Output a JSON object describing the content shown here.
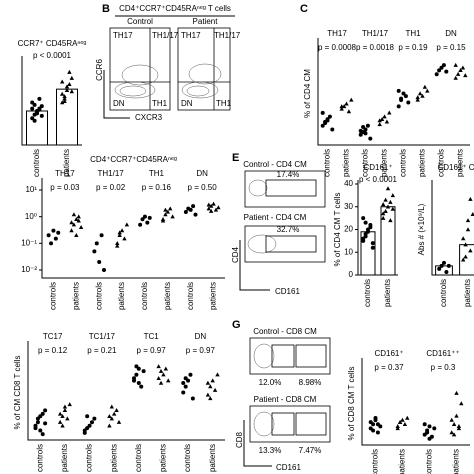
{
  "figure": {
    "letters": [
      "B",
      "C",
      "E",
      "G"
    ],
    "b_title": "CD4⁺CCR7⁺CD45RAⁿᵉᵍ T cells",
    "b_control": "Control",
    "b_patient": "Patient",
    "b_q1": "TH17",
    "b_q2": "TH1/17",
    "b_q3": "DN",
    "b_q4": "TH1",
    "b_ylabel": "CCR6",
    "b_xlabel": "CXCR3",
    "e_control": "Control - CD4 CM",
    "e_control_pct": "17.4%",
    "e_patient": "Patient - CD4 CM",
    "e_patient_pct": "32.7%",
    "e_ylabel": "CD4",
    "e_xlabel": "CD161",
    "g_control": "Control - CD8 CM",
    "g_control_pct1": "12.0%",
    "g_control_pct2": "8.98%",
    "g_patient": "Patient - CD8 CM",
    "g_patient_pct1": "13.3%",
    "g_patient_pct2": "7.47%",
    "g_ylabel": "CD8",
    "g_xlabel": "CD161"
  },
  "chart_data": [
    {
      "type": "dot",
      "title": "CCR7⁺ CD45RAⁿᵉᵍ",
      "categories": [
        null
      ],
      "annotations": [
        "p < 0.0001"
      ],
      "ylim": [
        0,
        70
      ],
      "yticks": [],
      "series": [
        {
          "name": "controls",
          "marker": "circle",
          "color": "#000000",
          "bars": [
            28
          ],
          "values": [
            [
              22,
              25,
              28,
              30,
              32,
              35,
              20,
              27,
              38,
              24,
              30,
              33,
              26,
              29
            ]
          ]
        },
        {
          "name": "patients",
          "marker": "triangle",
          "color": "#000000",
          "bars": [
            46
          ],
          "values": [
            [
              35,
              40,
              45,
              50,
              55,
              42,
              38,
              48,
              60,
              44,
              52,
              36
            ]
          ]
        }
      ]
    },
    {
      "type": "dot",
      "ylabel": "% of CD4 CM",
      "categories": [
        "TH17",
        "TH1/17",
        "TH1",
        "DN"
      ],
      "annotations": [
        "p = 0.0008",
        "p = 0.0018",
        "p = 0.19",
        "p = 0.15"
      ],
      "ylim": [
        0,
        80
      ],
      "yticks": [],
      "series": [
        {
          "name": "controls",
          "marker": "circle",
          "color": "#000000",
          "values": [
            [
              15,
              18,
              20,
              22,
              12,
              25,
              17,
              19
            ],
            [
              8,
              10,
              12,
              15,
              5,
              11,
              14,
              9
            ],
            [
              30,
              35,
              40,
              38,
              33,
              42,
              36
            ],
            [
              55,
              58,
              60,
              62,
              57
            ]
          ]
        },
        {
          "name": "patients",
          "marker": "triangle",
          "color": "#000000",
          "values": [
            [
              28,
              30,
              32,
              26,
              35,
              30
            ],
            [
              16,
              20,
              22,
              18,
              25,
              19
            ],
            [
              35,
              40,
              38,
              45,
              42,
              37
            ],
            [
              52,
              55,
              58,
              60,
              54,
              62
            ]
          ]
        }
      ]
    },
    {
      "type": "dot",
      "title": "CD4⁺CCR7⁺CD45RAⁿᵉᵍ",
      "categories": [
        "TH17",
        "TH1/17",
        "TH1",
        "DN"
      ],
      "annotations": [
        "p = 0.03",
        "p = 0.02",
        "p = 0.16",
        "p = 0.50"
      ],
      "log": true,
      "ylim": [
        0.005,
        20
      ],
      "yticks": [
        {
          "value": 10,
          "label": "10¹"
        },
        {
          "value": 1,
          "label": "10⁰"
        },
        {
          "value": 0.1,
          "label": "10⁻¹"
        },
        {
          "value": 0.01,
          "label": "10⁻²"
        }
      ],
      "series": [
        {
          "name": "controls",
          "marker": "circle",
          "color": "#000000",
          "values": [
            [
              0.2,
              0.1,
              0.3,
              0.15,
              0.25
            ],
            [
              0.05,
              0.1,
              0.02,
              0.2,
              0.01
            ],
            [
              0.5,
              0.8,
              1,
              0.6,
              0.9
            ],
            [
              1.5,
              2,
              1.8,
              2.5,
              1.2
            ]
          ]
        },
        {
          "name": "patients",
          "marker": "triangle",
          "color": "#000000",
          "values": [
            [
              0.3,
              0.5,
              0.8,
              1,
              0.4,
              0.6,
              1.2,
              0.2,
              0.7
            ],
            [
              0.1,
              0.2,
              0.3,
              0.15,
              0.5,
              0.08,
              0.25
            ],
            [
              0.8,
              1.2,
              1.5,
              2,
              1,
              0.7,
              1.8
            ],
            [
              2,
              2.5,
              3,
              1.8,
              2.2,
              2.8,
              1.6
            ]
          ]
        }
      ]
    },
    {
      "type": "dot",
      "title": "CD161⁺",
      "ylabel": "% of CD4 CM T cells",
      "categories": [
        null
      ],
      "annotations": [
        "p < 0.0001"
      ],
      "ylim": [
        0,
        40
      ],
      "yticks": [
        0,
        10,
        20,
        30,
        40
      ],
      "series": [
        {
          "name": "controls",
          "marker": "circle",
          "color": "#000000",
          "bars": [
            19
          ],
          "values": [
            [
              15,
              18,
              20,
              22,
              12,
              25,
              17,
              19,
              21,
              14,
              16,
              23
            ]
          ]
        },
        {
          "name": "patients",
          "marker": "triangle",
          "color": "#000000",
          "bars": [
            30
          ],
          "values": [
            [
              25,
              28,
              30,
              32,
              35,
              27,
              33,
              38,
              24,
              29,
              31
            ]
          ]
        }
      ]
    },
    {
      "type": "dot",
      "title": "CD161⁺ C",
      "ylabel": "Abs # (×10⁹/L)",
      "categories": [
        null
      ],
      "annotations": [
        null
      ],
      "ylim": [
        0,
        0.3
      ],
      "yticks": [],
      "series": [
        {
          "name": "controls",
          "marker": "circle",
          "color": "#000000",
          "bars": [
            0.03
          ],
          "values": [
            [
              0.02,
              0.03,
              0.04,
              0.01,
              0.03
            ]
          ]
        },
        {
          "name": "patients",
          "marker": "triangle",
          "color": "#000000",
          "bars": [
            0.1
          ],
          "values": [
            [
              0.05,
              0.1,
              0.15,
              0.08,
              0.2,
              0.12,
              0.06,
              0.18,
              0.25
            ]
          ]
        }
      ]
    },
    {
      "type": "dot",
      "ylabel": "% of CM CD8 T cells",
      "categories": [
        "TC17",
        "TC1/17",
        "TC1",
        "DN"
      ],
      "annotations": [
        "p = 0.12",
        "p = 0.21",
        "p = 0.97",
        "p = 0.97"
      ],
      "ylim": [
        0,
        80
      ],
      "yticks": [],
      "series": [
        {
          "name": "controls",
          "marker": "circle",
          "color": "#000000",
          "values": [
            [
              10,
              15,
              20,
              5,
              25,
              12,
              18,
              8,
              22,
              14
            ],
            [
              8,
              10,
              12,
              15,
              18,
              6,
              20
            ],
            [
              50,
              55,
              60,
              45,
              58,
              52,
              62,
              48
            ],
            [
              40,
              45,
              50,
              55,
              35,
              48,
              52
            ]
          ]
        },
        {
          "name": "patients",
          "marker": "triangle",
          "color": "#000000",
          "values": [
            [
              15,
              20,
              25,
              18,
              30,
              22,
              12,
              28
            ],
            [
              12,
              18,
              22,
              25,
              15,
              20,
              28
            ],
            [
              52,
              58,
              55,
              60,
              50,
              62,
              48
            ],
            [
              38,
              45,
              50,
              42,
              55,
              48,
              35
            ]
          ]
        }
      ]
    },
    {
      "type": "dot",
      "ylabel": "% of CD8 CM T cells",
      "categories": [
        "CD161⁺",
        "CD161⁺⁺"
      ],
      "annotations": [
        "p = 0.37",
        "p = 0.3"
      ],
      "ylim": [
        0,
        40
      ],
      "yticks": [],
      "series": [
        {
          "name": "controls",
          "marker": "circle",
          "color": "#000000",
          "values": [
            [
              8,
              10,
              12,
              6,
              9,
              11,
              7,
              13,
              10
            ],
            [
              5,
              7,
              9,
              4,
              8,
              10,
              6,
              3
            ]
          ]
        },
        {
          "name": "patients",
          "marker": "triangle",
          "color": "#000000",
          "values": [
            [
              9,
              11,
              12,
              10,
              13,
              8,
              11
            ],
            [
              6,
              10,
              14,
              8,
              20,
              12,
              5,
              25,
              9
            ]
          ]
        }
      ]
    }
  ]
}
